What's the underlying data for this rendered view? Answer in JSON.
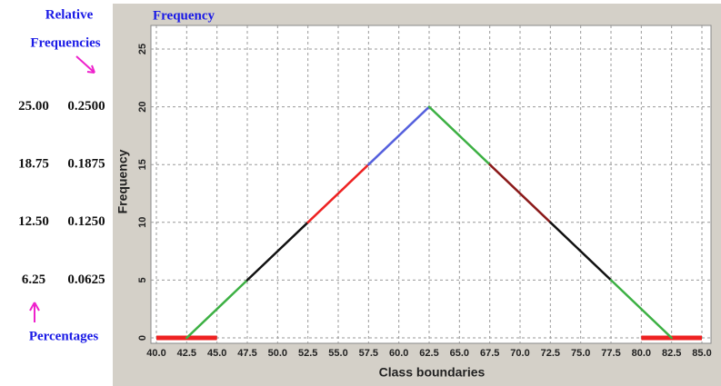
{
  "chart_data": {
    "type": "line",
    "title": "Frequency",
    "x_label": "Class boundaries",
    "y_label": "Frequency",
    "x": [
      42.5,
      47.5,
      52.5,
      57.5,
      62.5,
      67.5,
      72.5,
      77.5,
      82.5
    ],
    "values": [
      0,
      5,
      10,
      15,
      20,
      15,
      10,
      5,
      0
    ],
    "segment_colors": [
      "#3cb043",
      "#111111",
      "#ee2222",
      "#5560dd",
      "#3cb043",
      "#8b1a1a",
      "#111111",
      "#3cb043"
    ],
    "baseline_marks": {
      "color": "#ee2222",
      "ranges": [
        [
          40,
          45
        ],
        [
          80,
          85
        ]
      ]
    },
    "xlim": [
      40,
      85
    ],
    "ylim": [
      0,
      25
    ],
    "grid": true,
    "xticks": [
      {
        "value": 40,
        "label": "40.0"
      },
      {
        "value": 42.5,
        "label": "42.5"
      },
      {
        "value": 45,
        "label": "45.0"
      },
      {
        "value": 47.5,
        "label": "47.5"
      },
      {
        "value": 50,
        "label": "50.0"
      },
      {
        "value": 52.5,
        "label": "52.5"
      },
      {
        "value": 55,
        "label": "55.0"
      },
      {
        "value": 57.5,
        "label": "57.5"
      },
      {
        "value": 60,
        "label": "60.0"
      },
      {
        "value": 62.5,
        "label": "62.5"
      },
      {
        "value": 65,
        "label": "65.0"
      },
      {
        "value": 67.5,
        "label": "67.5"
      },
      {
        "value": 70,
        "label": "70.0"
      },
      {
        "value": 72.5,
        "label": "72.5"
      },
      {
        "value": 75,
        "label": "75.0"
      },
      {
        "value": 77.5,
        "label": "77.5"
      },
      {
        "value": 80,
        "label": "80.0"
      },
      {
        "value": 82.5,
        "label": "82.5"
      },
      {
        "value": 85,
        "label": "85.0"
      }
    ],
    "yticks": [
      0,
      5,
      10,
      15,
      20,
      25
    ],
    "annotations": {
      "relative_title": [
        "Relative",
        "Frequencies"
      ],
      "percent_title": "Percentages",
      "percentages": [
        {
          "value": 25,
          "label": "25.00"
        },
        {
          "value": 18.75,
          "label": "18.75"
        },
        {
          "value": 12.5,
          "label": "12.50"
        },
        {
          "value": 6.25,
          "label": "6.25"
        }
      ],
      "relative_frequencies": [
        {
          "value": 0.25,
          "label": "0.2500"
        },
        {
          "value": 0.1875,
          "label": "0.1875"
        },
        {
          "value": 0.125,
          "label": "0.1250"
        },
        {
          "value": 0.0625,
          "label": "0.0625"
        }
      ]
    }
  }
}
